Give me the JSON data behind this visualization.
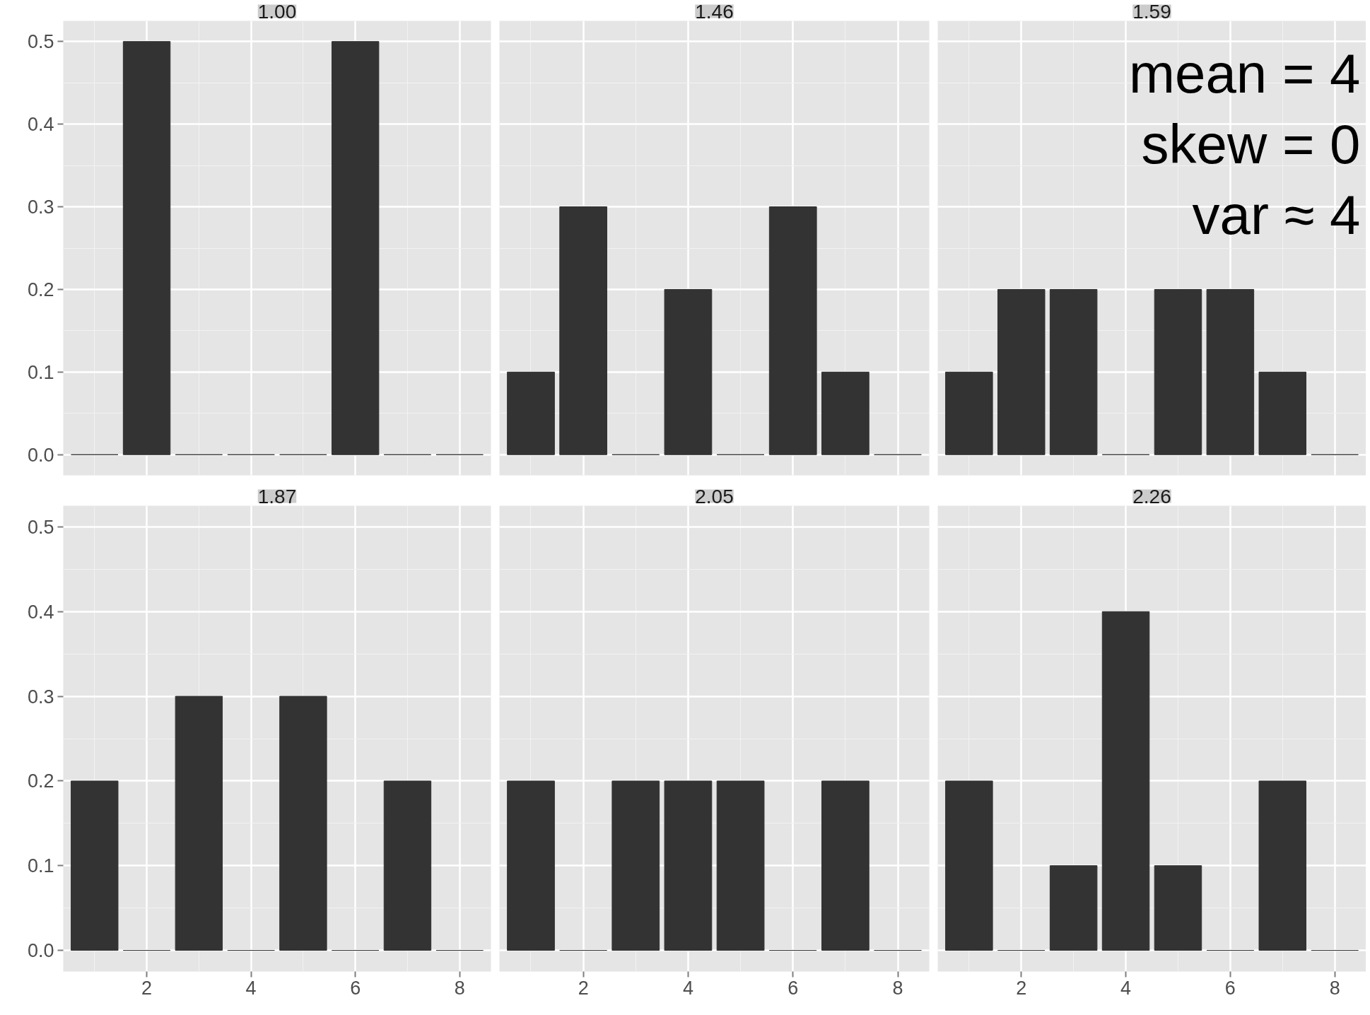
{
  "chart_data": [
    {
      "type": "bar",
      "title": "1.00",
      "x": [
        1,
        2,
        3,
        4,
        5,
        6,
        7,
        8
      ],
      "values": [
        0,
        0.5,
        0,
        0,
        0,
        0.5,
        0,
        0
      ],
      "color": "#333333",
      "xlim": [
        0.4,
        8.6
      ],
      "ylim": [
        -0.025,
        0.525
      ],
      "xticks": [
        2,
        4,
        6,
        8
      ],
      "yticks": [
        {
          "value": 0,
          "label": "0.0"
        },
        0.1,
        0.2,
        0.3,
        0.4,
        0.5
      ],
      "grid": true,
      "tick_labels": "y"
    },
    {
      "type": "bar",
      "title": "1.46",
      "x": [
        1,
        2,
        3,
        4,
        5,
        6,
        7,
        8
      ],
      "values": [
        0.1,
        0.3,
        0,
        0.2,
        0,
        0.3,
        0.1,
        0
      ],
      "color": "#333333",
      "xlim": [
        0.4,
        8.6
      ],
      "ylim": [
        -0.025,
        0.525
      ],
      "xticks": [
        2,
        4,
        6,
        8
      ],
      "yticks": [
        0,
        0.1,
        0.2,
        0.3,
        0.4,
        0.5
      ],
      "grid": true,
      "tick_labels": false
    },
    {
      "type": "bar",
      "title": "1.59",
      "x": [
        1,
        2,
        3,
        4,
        5,
        6,
        7,
        8
      ],
      "values": [
        0.1,
        0.2,
        0.2,
        0,
        0.2,
        0.2,
        0.1,
        0
      ],
      "color": "#333333",
      "xlim": [
        0.4,
        8.6
      ],
      "ylim": [
        -0.025,
        0.525
      ],
      "xticks": [
        2,
        4,
        6,
        8
      ],
      "yticks": [
        0,
        0.1,
        0.2,
        0.3,
        0.4,
        0.5
      ],
      "grid": true,
      "tick_labels": false,
      "annotations": [
        "mean = 4",
        "skew = 0",
        "var ≈ 4"
      ]
    },
    {
      "type": "bar",
      "title": "1.87",
      "x": [
        1,
        2,
        3,
        4,
        5,
        6,
        7,
        8
      ],
      "values": [
        0.2,
        0,
        0.3,
        0,
        0.3,
        0,
        0.2,
        0
      ],
      "color": "#333333",
      "xlim": [
        0.4,
        8.6
      ],
      "ylim": [
        -0.025,
        0.525
      ],
      "xticks": [
        2,
        4,
        6,
        8
      ],
      "yticks": [
        {
          "value": 0,
          "label": "0.0"
        },
        0.1,
        0.2,
        0.3,
        0.4,
        0.5
      ],
      "grid": true
    },
    {
      "type": "bar",
      "title": "2.05",
      "x": [
        1,
        2,
        3,
        4,
        5,
        6,
        7,
        8
      ],
      "values": [
        0.2,
        0,
        0.2,
        0.2,
        0.2,
        0,
        0.2,
        0
      ],
      "color": "#333333",
      "xlim": [
        0.4,
        8.6
      ],
      "ylim": [
        -0.025,
        0.525
      ],
      "xticks": [
        2,
        4,
        6,
        8
      ],
      "yticks": [
        0,
        0.1,
        0.2,
        0.3,
        0.4,
        0.5
      ],
      "grid": true,
      "tick_labels": "x"
    },
    {
      "type": "bar",
      "title": "2.26",
      "x": [
        1,
        2,
        3,
        4,
        5,
        6,
        7,
        8
      ],
      "values": [
        0.2,
        0,
        0.1,
        0.4,
        0.1,
        0,
        0.2,
        0
      ],
      "color": "#333333",
      "xlim": [
        0.4,
        8.6
      ],
      "ylim": [
        -0.025,
        0.525
      ],
      "xticks": [
        2,
        4,
        6,
        8
      ],
      "yticks": [
        0,
        0.1,
        0.2,
        0.3,
        0.4,
        0.5
      ],
      "grid": true,
      "tick_labels": "x"
    }
  ]
}
